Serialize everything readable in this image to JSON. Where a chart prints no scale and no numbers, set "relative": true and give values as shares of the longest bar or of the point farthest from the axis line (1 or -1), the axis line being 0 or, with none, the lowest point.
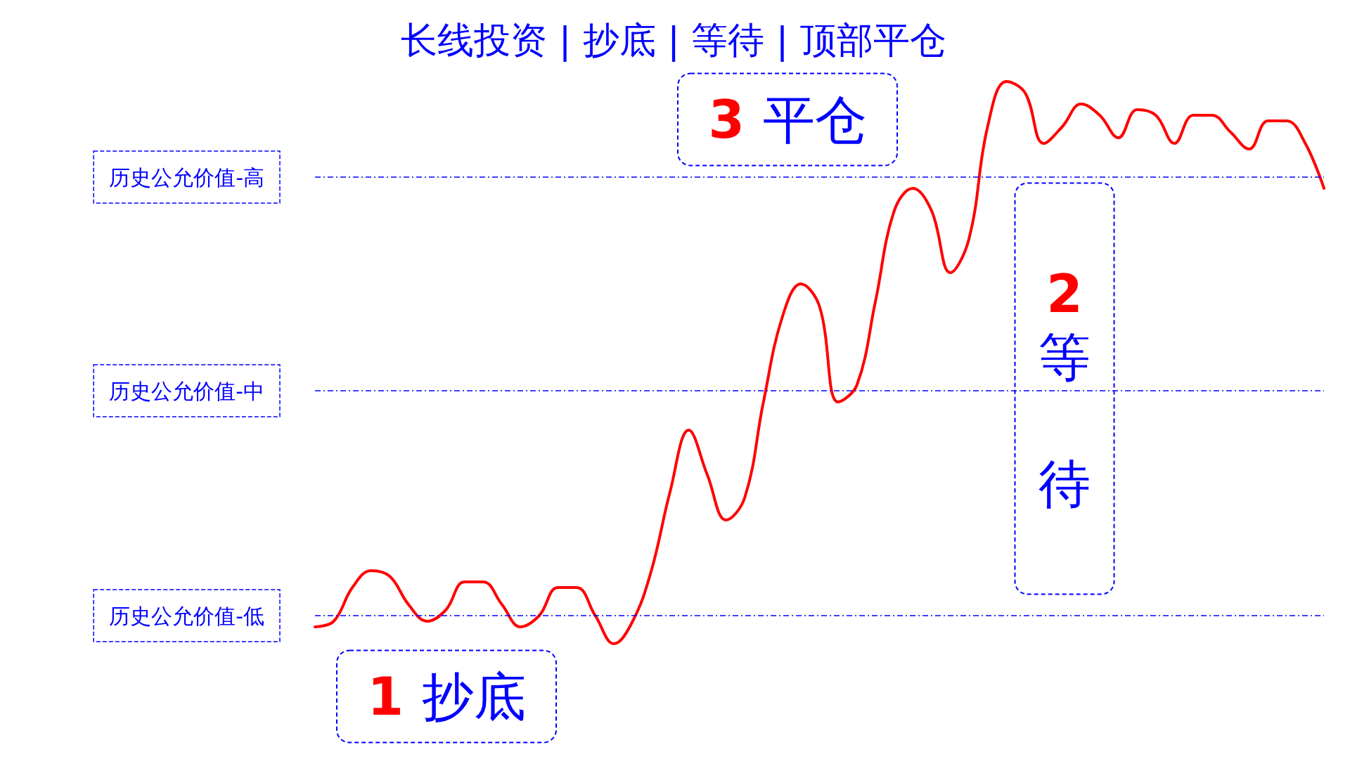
{
  "chart_data": {
    "type": "line",
    "relative": true,
    "title": "长线投资 | 抄底 | 等待 | 顶部平仓",
    "categories": [
      null,
      null,
      null,
      null,
      null,
      null,
      null,
      null,
      null,
      null,
      null,
      null,
      null,
      null,
      null,
      null,
      null,
      null,
      null,
      null,
      null,
      null,
      null,
      null,
      null,
      null,
      null,
      null,
      null,
      null,
      null,
      null,
      null,
      null,
      null,
      null,
      null,
      null,
      null,
      null,
      null,
      null,
      null,
      null,
      null,
      null,
      null,
      null,
      null,
      null,
      null,
      null,
      null,
      null,
      null
    ],
    "series": [
      {
        "color": "#ff0000",
        "values": [
          0.03,
          0.04,
          0.1,
          0.13,
          0.12,
          0.07,
          0.04,
          0.06,
          0.11,
          0.11,
          0.07,
          0.03,
          0.05,
          0.1,
          0.1,
          0.05,
          0,
          0.04,
          0.13,
          0.27,
          0.38,
          0.3,
          0.22,
          0.26,
          0.43,
          0.58,
          0.64,
          0.6,
          0.43,
          0.46,
          0.61,
          0.77,
          0.81,
          0.77,
          0.66,
          0.72,
          0.92,
          1,
          0.98,
          0.89,
          0.92,
          0.96,
          0.94,
          0.9,
          0.95,
          0.94,
          0.89,
          0.94,
          0.94,
          0.91,
          0.88,
          0.93,
          0.93,
          0.89,
          0.81
        ]
      }
    ],
    "ref_lines": [
      {
        "axis": "y",
        "value": 0.83,
        "label": "历史公允价值-高",
        "color": "#0000ff",
        "line_style": "dashed"
      },
      {
        "axis": "y",
        "value": 0.45,
        "label": "历史公允价值-中",
        "color": "#0000ff",
        "line_style": "dashed"
      },
      {
        "axis": "y",
        "value": 0.05,
        "label": "历史公允价值-低",
        "color": "#0000ff",
        "line_style": "dashed"
      }
    ],
    "annotations": [
      "1 抄底",
      "2 等待",
      "3 平仓"
    ],
    "marker": "none",
    "line_style": "solid"
  }
}
